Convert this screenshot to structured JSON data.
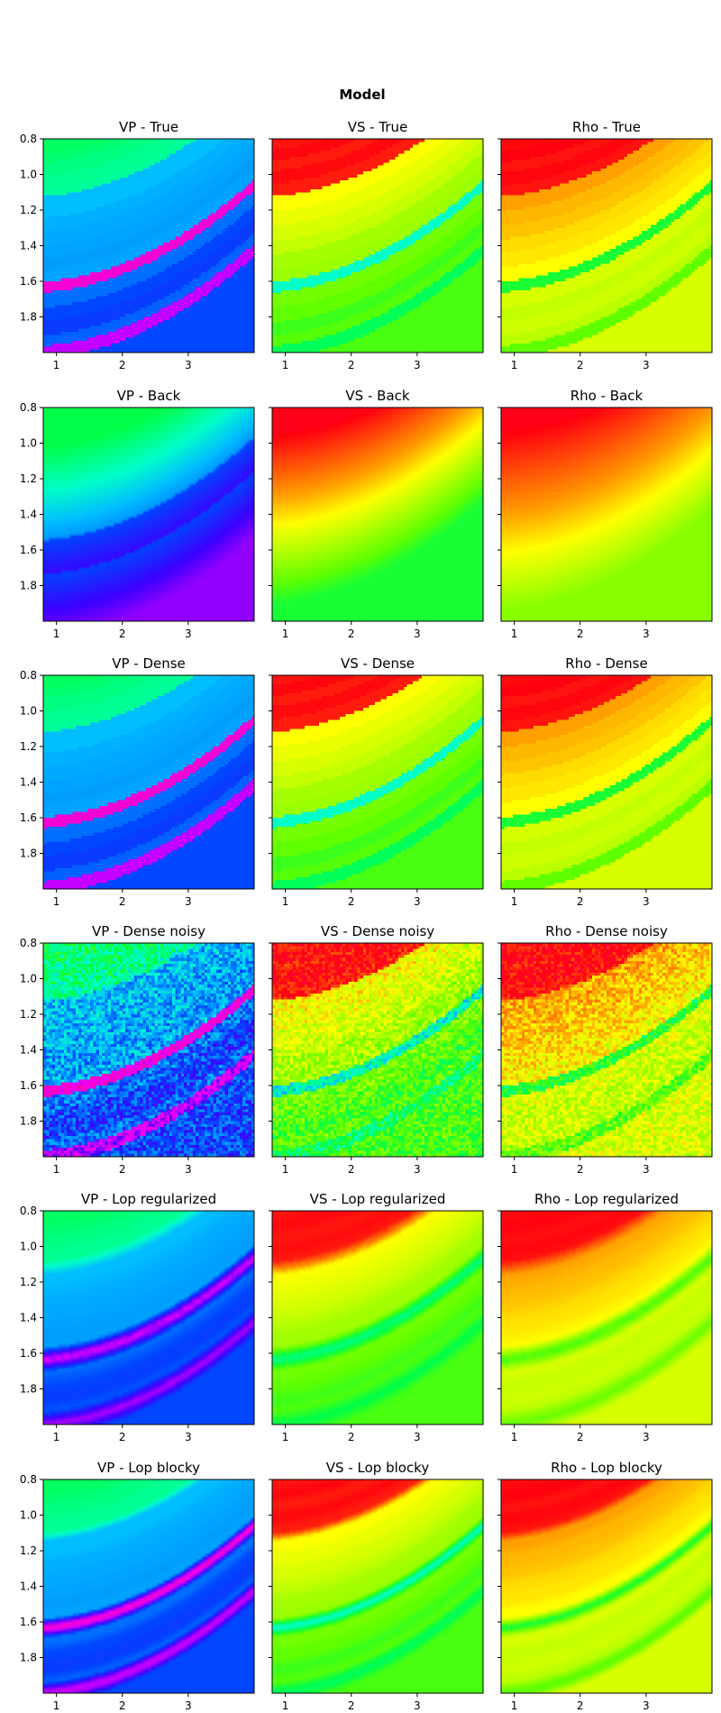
{
  "figure": {
    "title": "Model"
  },
  "axes": {
    "x_ticks": [
      1,
      2,
      3
    ],
    "x_tick_labels": [
      "1",
      "2",
      "3"
    ],
    "x_range": [
      0.8,
      4.0
    ],
    "y_ticks": [
      0.8,
      1.0,
      1.2,
      1.4,
      1.6,
      1.8
    ],
    "y_tick_labels": [
      "0.8",
      "1.0",
      "1.2",
      "1.4",
      "1.6",
      "1.8"
    ],
    "y_range": [
      0.8,
      2.0
    ],
    "y_inverted": true
  },
  "colormap": "gist_rainbow",
  "chart_data": [
    {
      "type": "heatmap",
      "title": "VP - True",
      "field": "VP",
      "variant": "true"
    },
    {
      "type": "heatmap",
      "title": "VS - True",
      "field": "VS",
      "variant": "true"
    },
    {
      "type": "heatmap",
      "title": "Rho - True",
      "field": "Rho",
      "variant": "true"
    },
    {
      "type": "heatmap",
      "title": "VP - Back",
      "field": "VP",
      "variant": "back"
    },
    {
      "type": "heatmap",
      "title": "VS - Back",
      "field": "VS",
      "variant": "back"
    },
    {
      "type": "heatmap",
      "title": "Rho - Back",
      "field": "Rho",
      "variant": "back"
    },
    {
      "type": "heatmap",
      "title": "VP - Dense",
      "field": "VP",
      "variant": "dense"
    },
    {
      "type": "heatmap",
      "title": "VS - Dense",
      "field": "VS",
      "variant": "dense"
    },
    {
      "type": "heatmap",
      "title": "Rho - Dense",
      "field": "Rho",
      "variant": "dense"
    },
    {
      "type": "heatmap",
      "title": "VP - Dense noisy",
      "field": "VP",
      "variant": "noisy"
    },
    {
      "type": "heatmap",
      "title": "VS - Dense noisy",
      "field": "VS",
      "variant": "noisy"
    },
    {
      "type": "heatmap",
      "title": "Rho - Dense noisy",
      "field": "Rho",
      "variant": "noisy"
    },
    {
      "type": "heatmap",
      "title": "VP - Lop regularized",
      "field": "VP",
      "variant": "reg"
    },
    {
      "type": "heatmap",
      "title": "VS - Lop regularized",
      "field": "VS",
      "variant": "reg"
    },
    {
      "type": "heatmap",
      "title": "Rho - Lop regularized",
      "field": "Rho",
      "variant": "reg"
    },
    {
      "type": "heatmap",
      "title": "VP - Lop blocky",
      "field": "VP",
      "variant": "blocky"
    },
    {
      "type": "heatmap",
      "title": "VS - Lop blocky",
      "field": "VS",
      "variant": "blocky"
    },
    {
      "type": "heatmap",
      "title": "Rho - Lop blocky",
      "field": "Rho",
      "variant": "blocky"
    }
  ]
}
